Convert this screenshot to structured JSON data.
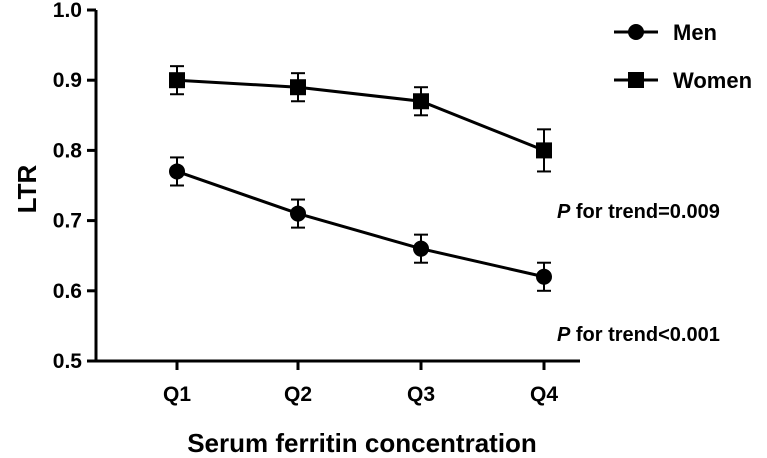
{
  "chart_data": {
    "type": "line",
    "title": "",
    "xlabel": "Serum ferritin concentration",
    "ylabel": "LTR",
    "categories": [
      "Q1",
      "Q2",
      "Q3",
      "Q4"
    ],
    "ylim": [
      0.5,
      1.0
    ],
    "yticks": [
      "0.5",
      "0.6",
      "0.7",
      "0.8",
      "0.9",
      "1.0"
    ],
    "grid": false,
    "legend_position": "top-right",
    "series": [
      {
        "name": "Men",
        "marker": "circle",
        "color": "#000000",
        "values": [
          0.77,
          0.71,
          0.66,
          0.62
        ],
        "error": [
          0.02,
          0.02,
          0.02,
          0.02
        ]
      },
      {
        "name": "Women",
        "marker": "square",
        "color": "#000000",
        "values": [
          0.9,
          0.89,
          0.87,
          0.8
        ],
        "error": [
          0.02,
          0.02,
          0.02,
          0.03
        ]
      }
    ],
    "annotations": [
      {
        "italic": "P",
        "text": " for trend=0.009"
      },
      {
        "italic": "P",
        "text": " for trend<0.001"
      }
    ]
  }
}
